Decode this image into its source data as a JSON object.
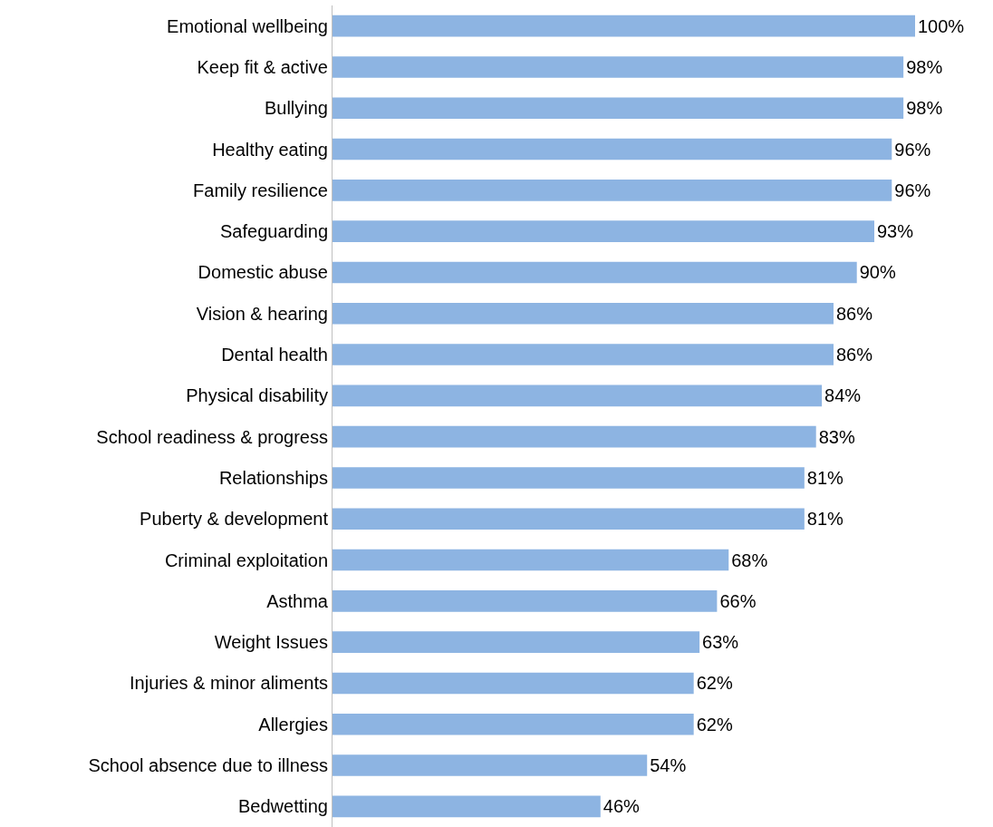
{
  "chart_data": {
    "type": "bar",
    "orientation": "horizontal",
    "categories": [
      "Emotional wellbeing",
      "Keep fit & active",
      "Bullying",
      "Healthy eating",
      "Family resilience",
      "Safeguarding",
      "Domestic abuse",
      "Vision & hearing",
      "Dental health",
      "Physical disability",
      "School readiness & progress",
      "Relationships",
      "Puberty & development",
      "Criminal exploitation",
      "Asthma",
      "Weight Issues",
      "Injuries & minor aliments",
      "Allergies",
      "School absence due to illness",
      "Bedwetting"
    ],
    "values": [
      100,
      98,
      98,
      96,
      96,
      93,
      90,
      86,
      86,
      84,
      83,
      81,
      81,
      68,
      66,
      63,
      62,
      62,
      54,
      46
    ],
    "value_labels": [
      "100%",
      "98%",
      "98%",
      "96%",
      "96%",
      "93%",
      "90%",
      "86%",
      "86%",
      "84%",
      "83%",
      "81%",
      "81%",
      "68%",
      "66%",
      "63%",
      "62%",
      "62%",
      "54%",
      "46%"
    ],
    "color": "#8db4e2",
    "xlim": [
      0,
      100
    ],
    "tick_labels": "y"
  }
}
